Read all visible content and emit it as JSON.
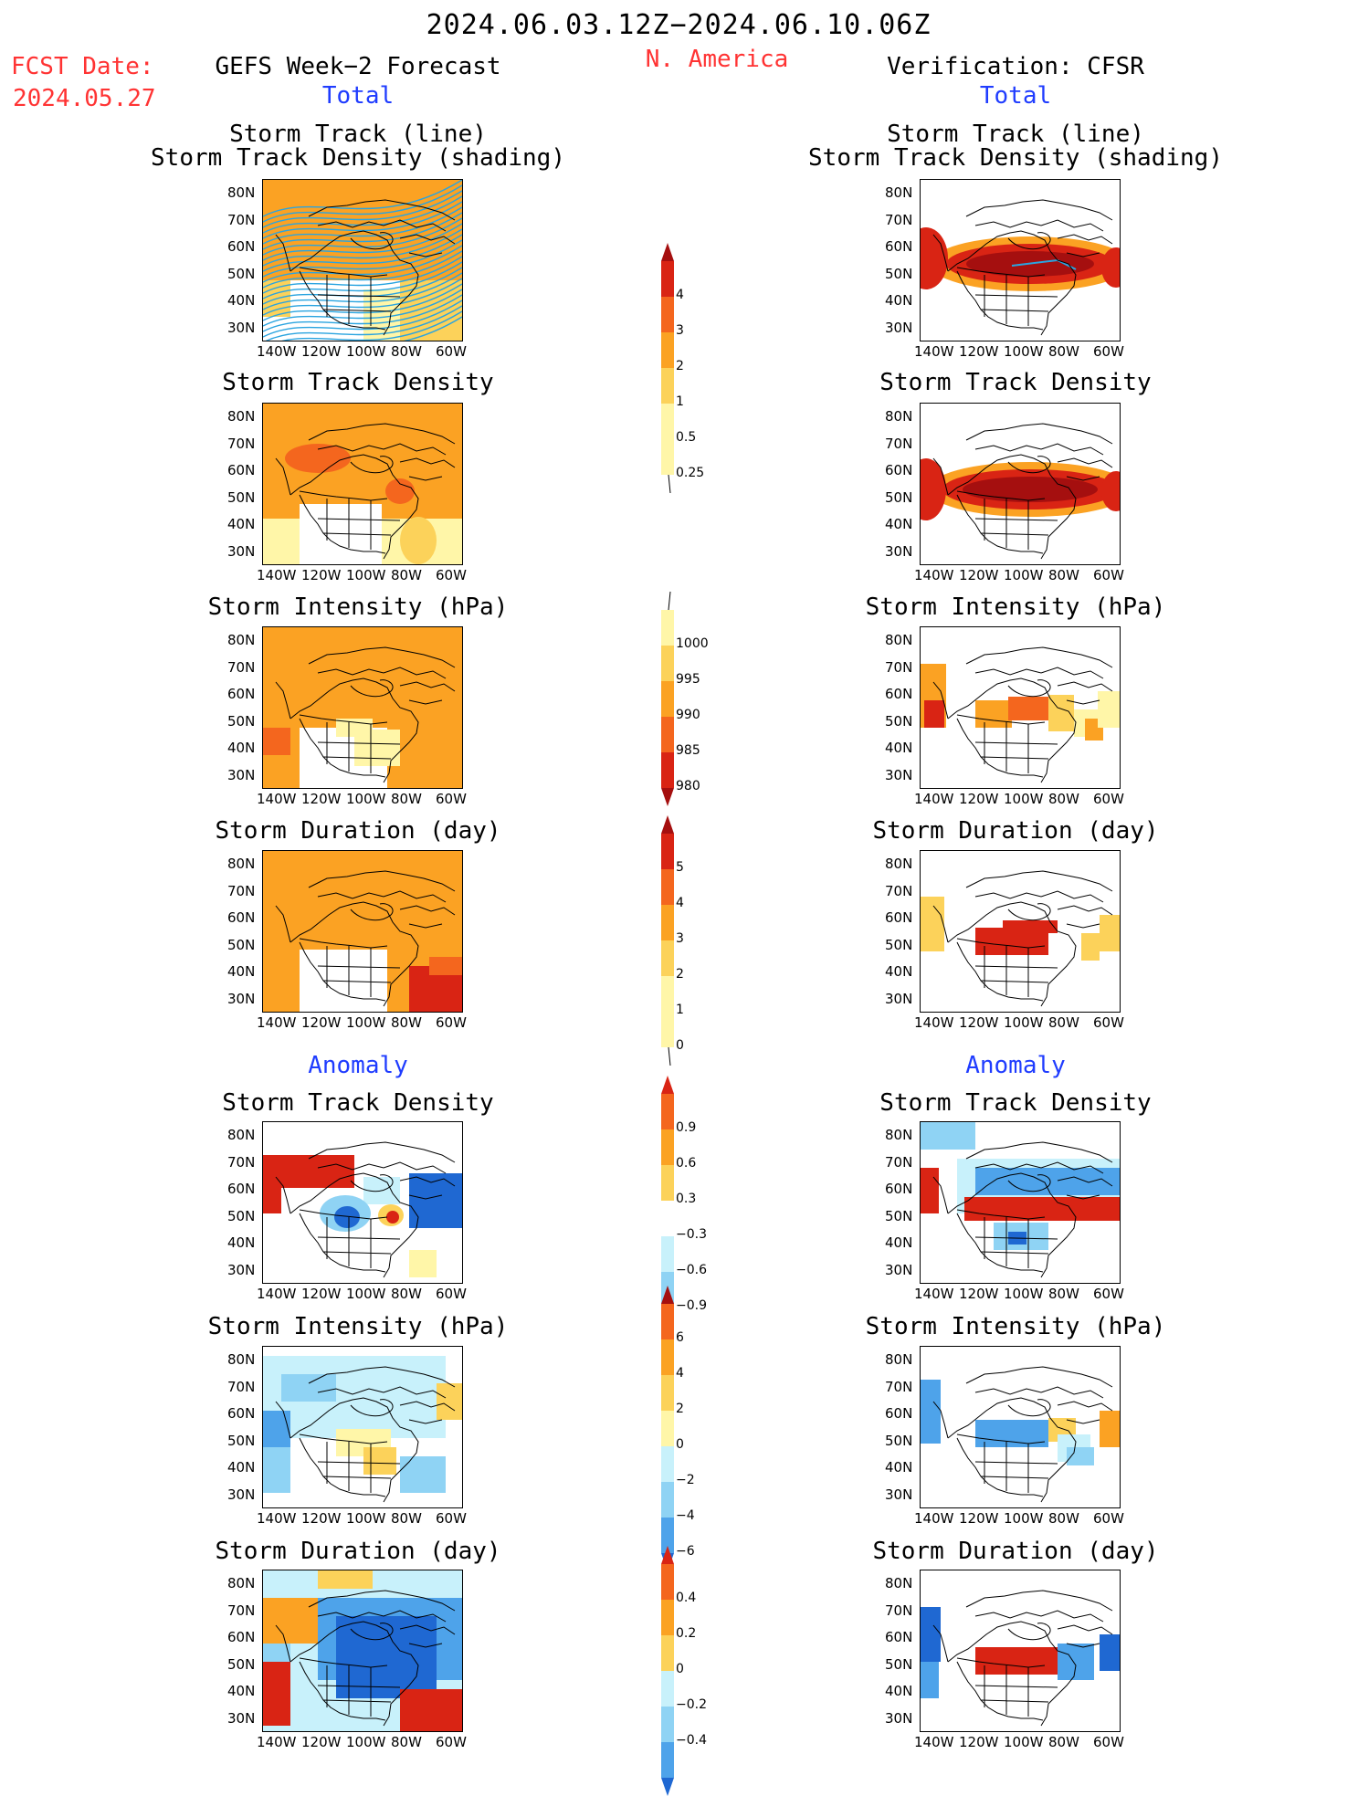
{
  "header": {
    "period": "2024.06.03.12Z−2024.06.10.06Z",
    "region": "N. America",
    "fcst_label": "FCST Date:",
    "fcst_date": "2024.05.27",
    "left_title": "GEFS Week−2 Forecast",
    "right_title": "Verification: CFSR",
    "section_total": "Total",
    "section_anomaly": "Anomaly"
  },
  "panel_titles": {
    "track_line": "Storm Track (line)",
    "track_shading": "Storm Track Density (shading)",
    "density": "Storm Track Density",
    "intensity": "Storm Intensity (hPa)",
    "duration": "Storm Duration (day)"
  },
  "axes": {
    "lat_labels": [
      "80N",
      "70N",
      "60N",
      "50N",
      "40N",
      "30N"
    ],
    "lon_labels": [
      "140W",
      "120W",
      "100W",
      "80W",
      "60W"
    ]
  },
  "colorbars": {
    "density_total": [
      "4",
      "3",
      "2",
      "1",
      "0.5",
      "0.25"
    ],
    "intensity_total": [
      "1000",
      "995",
      "990",
      "985",
      "980"
    ],
    "duration_total": [
      "5",
      "4",
      "3",
      "2",
      "1",
      "0"
    ],
    "density_anom": [
      "0.9",
      "0.6",
      "0.3",
      "−0.3",
      "−0.6",
      "−0.9"
    ],
    "intensity_anom": [
      "6",
      "4",
      "2",
      "0",
      "−2",
      "−4",
      "−6"
    ],
    "duration_anom": [
      "0.4",
      "0.2",
      "0",
      "−0.2",
      "−0.4"
    ]
  },
  "colors": {
    "title_red": "#ff3333",
    "title_blue": "#1f3cff",
    "pos_1": "#fff6a8",
    "pos_2": "#fcd25a",
    "pos_3": "#fba223",
    "pos_4": "#f4661e",
    "pos_5": "#d92414",
    "pos_6": "#a50f0f",
    "neg_1": "#c8f1fb",
    "neg_2": "#8fd3f4",
    "neg_3": "#4ea3ea",
    "neg_4": "#1f68d2"
  }
}
